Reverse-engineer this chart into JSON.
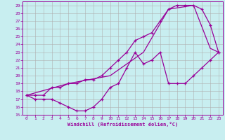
{
  "xlabel": "Windchill (Refroidissement éolien,°C)",
  "background_color": "#c8eef0",
  "grid_color": "#b0b0b0",
  "line_color": "#990099",
  "xlim": [
    -0.5,
    23.5
  ],
  "ylim": [
    15,
    29.5
  ],
  "xticks": [
    0,
    1,
    2,
    3,
    4,
    5,
    6,
    7,
    8,
    9,
    10,
    11,
    12,
    13,
    14,
    15,
    16,
    17,
    18,
    19,
    20,
    21,
    22,
    23
  ],
  "yticks": [
    15,
    16,
    17,
    18,
    19,
    20,
    21,
    22,
    23,
    24,
    25,
    26,
    27,
    28,
    29
  ],
  "curve_upper_x": [
    0,
    1,
    2,
    3,
    4,
    5,
    6,
    7,
    8,
    9,
    10,
    11,
    12,
    13,
    14,
    15,
    16,
    17,
    18,
    19,
    20,
    21,
    22,
    23
  ],
  "curve_upper_y": [
    17.5,
    17.5,
    17.5,
    18.5,
    18.5,
    19,
    19,
    19.5,
    19.5,
    20,
    21,
    22,
    23,
    24.5,
    25,
    25.5,
    27,
    28.5,
    29,
    29,
    29,
    28.5,
    26.5,
    23
  ],
  "curve_lower_x": [
    0,
    1,
    2,
    3,
    4,
    5,
    6,
    7,
    8,
    9,
    10,
    11,
    12,
    13,
    14,
    15,
    16,
    17,
    18,
    19,
    20,
    21,
    22,
    23
  ],
  "curve_lower_y": [
    17.5,
    17,
    17,
    17,
    16.5,
    16,
    15.5,
    15.5,
    16,
    17,
    18.5,
    19,
    21,
    23,
    21.5,
    22,
    23,
    19,
    19,
    19,
    20,
    21,
    22,
    23
  ],
  "curve_diag_x": [
    0,
    5,
    10,
    14,
    17,
    20,
    22,
    23
  ],
  "curve_diag_y": [
    17.5,
    19,
    20,
    23,
    28.5,
    29,
    23.5,
    23
  ]
}
